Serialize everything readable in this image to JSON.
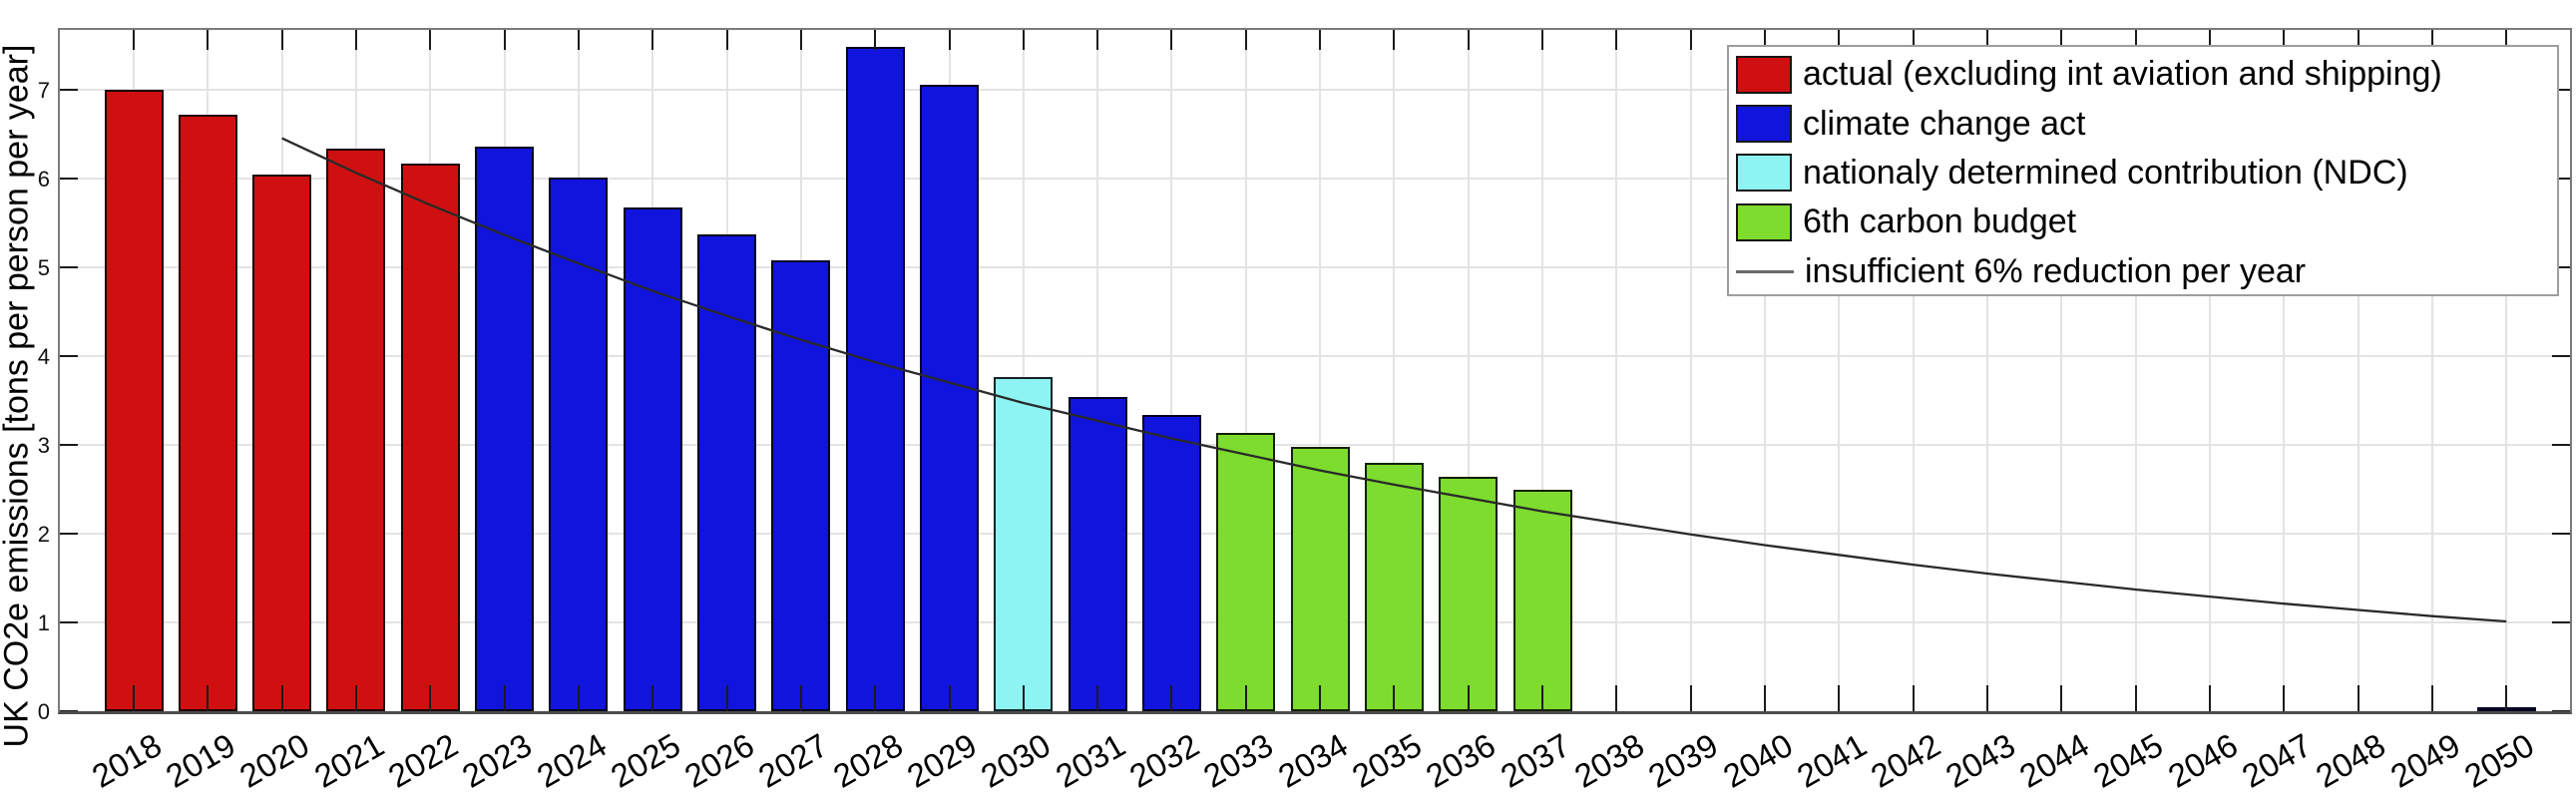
{
  "chart_data": {
    "type": "bar",
    "title": "",
    "xlabel": "",
    "ylabel": "UK CO2e emissions [tons per person per year]",
    "x_ticks": [
      2018,
      2019,
      2020,
      2021,
      2022,
      2023,
      2024,
      2025,
      2026,
      2027,
      2028,
      2029,
      2030,
      2031,
      2032,
      2033,
      2034,
      2035,
      2036,
      2037,
      2038,
      2039,
      2040,
      2041,
      2042,
      2043,
      2044,
      2045,
      2046,
      2047,
      2048,
      2049,
      2050
    ],
    "y_ticks": [
      0,
      1,
      2,
      3,
      4,
      5,
      6,
      7
    ],
    "ylim": [
      0,
      7.69
    ],
    "grid": true,
    "legend_position": "upper right",
    "series": [
      {
        "name": "actual (excluding int aviation and shipping)",
        "type": "bar",
        "color": "#d01010",
        "points": [
          [
            2018,
            7.0
          ],
          [
            2019,
            6.72
          ],
          [
            2020,
            6.04
          ],
          [
            2021,
            6.33
          ],
          [
            2022,
            6.16
          ]
        ]
      },
      {
        "name": "climate change act",
        "type": "bar",
        "color": "#1114dc",
        "points": [
          [
            2023,
            6.36
          ],
          [
            2024,
            6.01
          ],
          [
            2025,
            5.67
          ],
          [
            2026,
            5.37
          ],
          [
            2027,
            5.07
          ],
          [
            2028,
            7.48
          ],
          [
            2029,
            7.05
          ],
          [
            2031,
            3.54
          ],
          [
            2032,
            3.34
          ],
          [
            2050,
            0.05
          ]
        ]
      },
      {
        "name": "nationaly determined contribution (NDC)",
        "type": "bar",
        "color": "#8df3f3",
        "points": [
          [
            2030,
            3.76
          ]
        ]
      },
      {
        "name": "6th carbon budget",
        "type": "bar",
        "color": "#7ddc2d",
        "points": [
          [
            2033,
            3.13
          ],
          [
            2034,
            2.97
          ],
          [
            2035,
            2.8
          ],
          [
            2036,
            2.64
          ],
          [
            2037,
            2.49
          ]
        ]
      },
      {
        "name": "insufficient 6% reduction per year",
        "type": "line",
        "color": "#2a2a2a",
        "points": [
          [
            2020,
            6.45
          ],
          [
            2021,
            6.06
          ],
          [
            2022,
            5.7
          ],
          [
            2023,
            5.36
          ],
          [
            2024,
            5.04
          ],
          [
            2025,
            4.73
          ],
          [
            2026,
            4.45
          ],
          [
            2027,
            4.18
          ],
          [
            2028,
            3.93
          ],
          [
            2029,
            3.7
          ],
          [
            2030,
            3.47
          ],
          [
            2031,
            3.27
          ],
          [
            2032,
            3.07
          ],
          [
            2033,
            2.89
          ],
          [
            2034,
            2.71
          ],
          [
            2035,
            2.55
          ],
          [
            2036,
            2.4
          ],
          [
            2037,
            2.25
          ],
          [
            2038,
            2.12
          ],
          [
            2039,
            1.99
          ],
          [
            2040,
            1.87
          ],
          [
            2041,
            1.76
          ],
          [
            2042,
            1.65
          ],
          [
            2043,
            1.55
          ],
          [
            2044,
            1.46
          ],
          [
            2045,
            1.37
          ],
          [
            2046,
            1.29
          ],
          [
            2047,
            1.21
          ],
          [
            2048,
            1.14
          ],
          [
            2049,
            1.07
          ],
          [
            2050,
            1.01
          ]
        ]
      }
    ]
  },
  "legend": {
    "items": [
      {
        "label": "actual (excluding int aviation and shipping)",
        "swatch": "patch",
        "color": "#d01010"
      },
      {
        "label": "climate change act",
        "swatch": "patch",
        "color": "#1114dc"
      },
      {
        "label": "nationaly determined contribution (NDC)",
        "swatch": "patch",
        "color": "#8df3f3"
      },
      {
        "label": "6th carbon budget",
        "swatch": "patch",
        "color": "#7ddc2d"
      },
      {
        "label": "insufficient 6% reduction per year",
        "swatch": "line",
        "color": "#6a6a6a"
      }
    ]
  },
  "colors": {
    "background": "#ffffff",
    "grid": "#e3e3e3",
    "plot_border": "#7b7b7b",
    "axis_bottom": "#4c4c4c",
    "tick": "#1b1b1b",
    "text": "#000000"
  }
}
